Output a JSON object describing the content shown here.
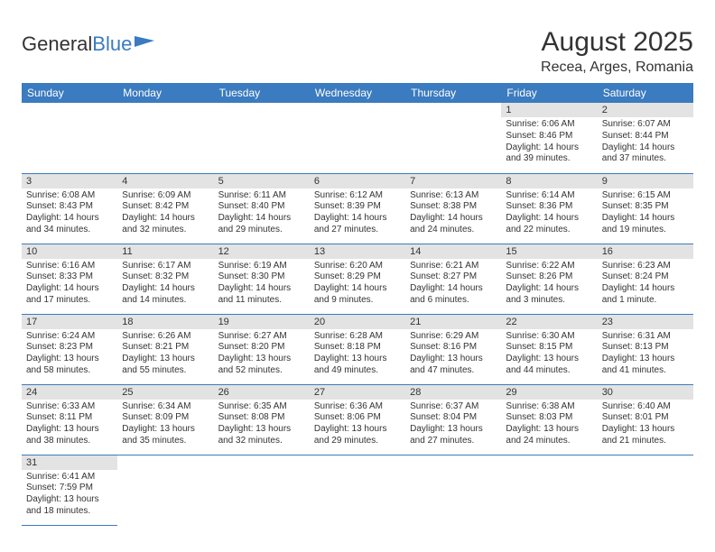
{
  "logo": {
    "text1": "General",
    "text2": "Blue"
  },
  "title": "August 2025",
  "location": "Recea, Arges, Romania",
  "dayHeaders": [
    "Sunday",
    "Monday",
    "Tuesday",
    "Wednesday",
    "Thursday",
    "Friday",
    "Saturday"
  ],
  "colors": {
    "headerBg": "#3b7bbf",
    "dayNumBg": "#e3e3e3",
    "rowBorder": "#3b7bbf"
  },
  "weeks": [
    [
      null,
      null,
      null,
      null,
      null,
      {
        "n": "1",
        "sunrise": "Sunrise: 6:06 AM",
        "sunset": "Sunset: 8:46 PM",
        "daylight": "Daylight: 14 hours and 39 minutes."
      },
      {
        "n": "2",
        "sunrise": "Sunrise: 6:07 AM",
        "sunset": "Sunset: 8:44 PM",
        "daylight": "Daylight: 14 hours and 37 minutes."
      }
    ],
    [
      {
        "n": "3",
        "sunrise": "Sunrise: 6:08 AM",
        "sunset": "Sunset: 8:43 PM",
        "daylight": "Daylight: 14 hours and 34 minutes."
      },
      {
        "n": "4",
        "sunrise": "Sunrise: 6:09 AM",
        "sunset": "Sunset: 8:42 PM",
        "daylight": "Daylight: 14 hours and 32 minutes."
      },
      {
        "n": "5",
        "sunrise": "Sunrise: 6:11 AM",
        "sunset": "Sunset: 8:40 PM",
        "daylight": "Daylight: 14 hours and 29 minutes."
      },
      {
        "n": "6",
        "sunrise": "Sunrise: 6:12 AM",
        "sunset": "Sunset: 8:39 PM",
        "daylight": "Daylight: 14 hours and 27 minutes."
      },
      {
        "n": "7",
        "sunrise": "Sunrise: 6:13 AM",
        "sunset": "Sunset: 8:38 PM",
        "daylight": "Daylight: 14 hours and 24 minutes."
      },
      {
        "n": "8",
        "sunrise": "Sunrise: 6:14 AM",
        "sunset": "Sunset: 8:36 PM",
        "daylight": "Daylight: 14 hours and 22 minutes."
      },
      {
        "n": "9",
        "sunrise": "Sunrise: 6:15 AM",
        "sunset": "Sunset: 8:35 PM",
        "daylight": "Daylight: 14 hours and 19 minutes."
      }
    ],
    [
      {
        "n": "10",
        "sunrise": "Sunrise: 6:16 AM",
        "sunset": "Sunset: 8:33 PM",
        "daylight": "Daylight: 14 hours and 17 minutes."
      },
      {
        "n": "11",
        "sunrise": "Sunrise: 6:17 AM",
        "sunset": "Sunset: 8:32 PM",
        "daylight": "Daylight: 14 hours and 14 minutes."
      },
      {
        "n": "12",
        "sunrise": "Sunrise: 6:19 AM",
        "sunset": "Sunset: 8:30 PM",
        "daylight": "Daylight: 14 hours and 11 minutes."
      },
      {
        "n": "13",
        "sunrise": "Sunrise: 6:20 AM",
        "sunset": "Sunset: 8:29 PM",
        "daylight": "Daylight: 14 hours and 9 minutes."
      },
      {
        "n": "14",
        "sunrise": "Sunrise: 6:21 AM",
        "sunset": "Sunset: 8:27 PM",
        "daylight": "Daylight: 14 hours and 6 minutes."
      },
      {
        "n": "15",
        "sunrise": "Sunrise: 6:22 AM",
        "sunset": "Sunset: 8:26 PM",
        "daylight": "Daylight: 14 hours and 3 minutes."
      },
      {
        "n": "16",
        "sunrise": "Sunrise: 6:23 AM",
        "sunset": "Sunset: 8:24 PM",
        "daylight": "Daylight: 14 hours and 1 minute."
      }
    ],
    [
      {
        "n": "17",
        "sunrise": "Sunrise: 6:24 AM",
        "sunset": "Sunset: 8:23 PM",
        "daylight": "Daylight: 13 hours and 58 minutes."
      },
      {
        "n": "18",
        "sunrise": "Sunrise: 6:26 AM",
        "sunset": "Sunset: 8:21 PM",
        "daylight": "Daylight: 13 hours and 55 minutes."
      },
      {
        "n": "19",
        "sunrise": "Sunrise: 6:27 AM",
        "sunset": "Sunset: 8:20 PM",
        "daylight": "Daylight: 13 hours and 52 minutes."
      },
      {
        "n": "20",
        "sunrise": "Sunrise: 6:28 AM",
        "sunset": "Sunset: 8:18 PM",
        "daylight": "Daylight: 13 hours and 49 minutes."
      },
      {
        "n": "21",
        "sunrise": "Sunrise: 6:29 AM",
        "sunset": "Sunset: 8:16 PM",
        "daylight": "Daylight: 13 hours and 47 minutes."
      },
      {
        "n": "22",
        "sunrise": "Sunrise: 6:30 AM",
        "sunset": "Sunset: 8:15 PM",
        "daylight": "Daylight: 13 hours and 44 minutes."
      },
      {
        "n": "23",
        "sunrise": "Sunrise: 6:31 AM",
        "sunset": "Sunset: 8:13 PM",
        "daylight": "Daylight: 13 hours and 41 minutes."
      }
    ],
    [
      {
        "n": "24",
        "sunrise": "Sunrise: 6:33 AM",
        "sunset": "Sunset: 8:11 PM",
        "daylight": "Daylight: 13 hours and 38 minutes."
      },
      {
        "n": "25",
        "sunrise": "Sunrise: 6:34 AM",
        "sunset": "Sunset: 8:09 PM",
        "daylight": "Daylight: 13 hours and 35 minutes."
      },
      {
        "n": "26",
        "sunrise": "Sunrise: 6:35 AM",
        "sunset": "Sunset: 8:08 PM",
        "daylight": "Daylight: 13 hours and 32 minutes."
      },
      {
        "n": "27",
        "sunrise": "Sunrise: 6:36 AM",
        "sunset": "Sunset: 8:06 PM",
        "daylight": "Daylight: 13 hours and 29 minutes."
      },
      {
        "n": "28",
        "sunrise": "Sunrise: 6:37 AM",
        "sunset": "Sunset: 8:04 PM",
        "daylight": "Daylight: 13 hours and 27 minutes."
      },
      {
        "n": "29",
        "sunrise": "Sunrise: 6:38 AM",
        "sunset": "Sunset: 8:03 PM",
        "daylight": "Daylight: 13 hours and 24 minutes."
      },
      {
        "n": "30",
        "sunrise": "Sunrise: 6:40 AM",
        "sunset": "Sunset: 8:01 PM",
        "daylight": "Daylight: 13 hours and 21 minutes."
      }
    ],
    [
      {
        "n": "31",
        "sunrise": "Sunrise: 6:41 AM",
        "sunset": "Sunset: 7:59 PM",
        "daylight": "Daylight: 13 hours and 18 minutes."
      },
      null,
      null,
      null,
      null,
      null,
      null
    ]
  ]
}
